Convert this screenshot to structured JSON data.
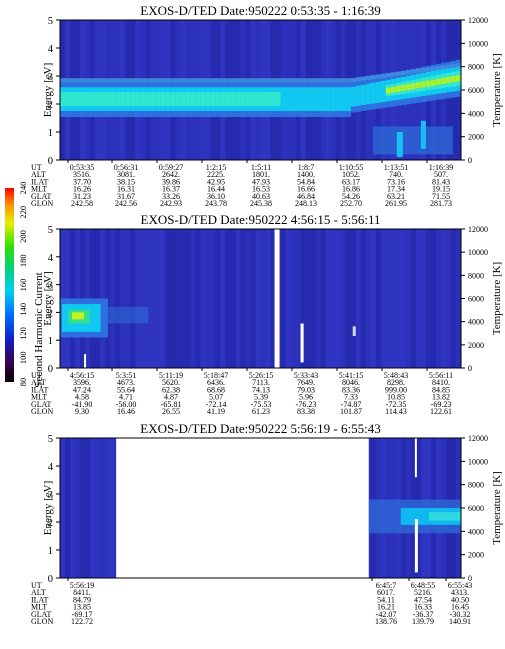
{
  "panels": [
    {
      "title": "EXOS-D/TED   Date:950222  0:53:35 - 1:16:39",
      "ylabel_left": "Energy [eV]",
      "ylabel_right": "Temperature [K]",
      "yticks_left": [
        "0",
        "1",
        "2",
        "3",
        "4",
        "5"
      ],
      "yticks_right": [
        "0",
        "2000",
        "4000",
        "6000",
        "8000",
        "10000",
        "12000"
      ],
      "ephemeris_labels": [
        "UT",
        "ALT",
        "ILAT",
        "MLT",
        "GLAT",
        "GLON"
      ],
      "ephemeris": [
        [
          "0:53:35",
          "3516.",
          "37.70",
          "16.26",
          "31.23",
          "242.58"
        ],
        [
          "0:56:31",
          "3081.",
          "38.15",
          "16.31",
          "31.67",
          "242.56"
        ],
        [
          "0:59:27",
          "2642.",
          "39.86",
          "16.37",
          "33.26",
          "242.93"
        ],
        [
          "1:2:15",
          "2225.",
          "42.95",
          "16.44",
          "36.10",
          "243.78"
        ],
        [
          "1:5:11",
          "1801.",
          "47.93",
          "16.53",
          "40.63",
          "245.38"
        ],
        [
          "1:8:7",
          "1400.",
          "54.84",
          "16.66",
          "46.84",
          "248.13"
        ],
        [
          "1:10:55",
          "1052.",
          "63.17",
          "16.86",
          "54.26",
          "252.70"
        ],
        [
          "1:13:51",
          "740.",
          "73.16",
          "17.34",
          "63.21",
          "261.95"
        ],
        [
          "1:16:39",
          "507.",
          "81.43",
          "19.15",
          "71.55",
          "281.73"
        ]
      ]
    },
    {
      "title": "EXOS-D/TED   Date:950222  4:56:15 - 5:56:11",
      "ylabel_left": "Energy [eV]",
      "ylabel_right": "Temperature [K]",
      "colorbar_label": "Second Harmonic Current",
      "colorbar_ticks": [
        "80",
        "100",
        "120",
        "140",
        "160",
        "180",
        "200",
        "220",
        "240"
      ],
      "yticks_left": [
        "0",
        "1",
        "2",
        "3",
        "4",
        "5"
      ],
      "yticks_right": [
        "0",
        "2000",
        "4000",
        "6000",
        "8000",
        "10000",
        "12000"
      ],
      "ephemeris_labels": [
        "UT",
        "ALT",
        "ILAT",
        "MLT",
        "GLAT",
        "GLON"
      ],
      "ephemeris": [
        [
          "4:56:15",
          "3596.",
          "47.24",
          "4.58",
          "-41.90",
          "9.30"
        ],
        [
          "5:3:51",
          "4673.",
          "55.64",
          "4.71",
          "-56.00",
          "16.46"
        ],
        [
          "5:11:19",
          "5620.",
          "62.38",
          "4.87",
          "-65.81",
          "26.55"
        ],
        [
          "5:18:47",
          "6436.",
          "68.68",
          "5.07",
          "-72.14",
          "41.19"
        ],
        [
          "5:26:15",
          "7113.",
          "74.13",
          "5.39",
          "-75.53",
          "61.23"
        ],
        [
          "5:33:43",
          "7649.",
          "79.03",
          "5.96",
          "-76.23",
          "83.38"
        ],
        [
          "5:41:15",
          "8046.",
          "83.36",
          "7.33",
          "-74.87",
          "101.87"
        ],
        [
          "5:48:43",
          "8298.",
          "999.00",
          "10.85",
          "-72.35",
          "114.43"
        ],
        [
          "5:56:11",
          "8410.",
          "84.85",
          "13.82",
          "-69.23",
          "122.61"
        ]
      ]
    },
    {
      "title": "EXOS-D/TED   Date:950222  5:56:19 - 6:55:43",
      "ylabel_left": "Energy [eV]",
      "ylabel_right": "Temperature [K]",
      "yticks_left": [
        "0",
        "1",
        "2",
        "3",
        "4",
        "5"
      ],
      "yticks_right": [
        "0",
        "2000",
        "4000",
        "6000",
        "8000",
        "10000",
        "12000"
      ],
      "ephemeris_labels": [
        "UT",
        "ALT",
        "ILAT",
        "MLT",
        "GLAT",
        "GLON"
      ],
      "ephemeris": [
        [
          "5:56:19",
          "8411.",
          "84.79",
          "13.85",
          "-69.17",
          "122.72"
        ],
        [
          "6:45:7",
          "6017.",
          "54.11",
          "16.21",
          "-42.07",
          "138.76"
        ],
        [
          "6:48:55",
          "5216.",
          "47.54",
          "16.33",
          "-36.37",
          "139.79"
        ],
        [
          "6:55:43",
          "4313.",
          "40.50",
          "16.45",
          "-30.32",
          "140.91"
        ]
      ]
    }
  ],
  "chart_data": [
    {
      "type": "heatmap",
      "title": "EXOS-D/TED   Date:950222  0:53:35 - 1:16:39",
      "ylabel": "Energy [eV]",
      "ylabel_right": "Temperature [K]",
      "ylim": [
        0,
        5
      ],
      "ylim_right": [
        0,
        12000
      ],
      "x": [
        "0:53:35",
        "0:56:31",
        "0:59:27",
        "1:2:15",
        "1:5:11",
        "1:8:7",
        "1:10:55",
        "1:13:51",
        "1:16:39"
      ],
      "features": [
        {
          "band": "peak",
          "energy_eV": [
            1.8,
            2.6
          ],
          "ut_range": [
            "0:53:35",
            "1:10:55"
          ],
          "level": "cyan/green"
        },
        {
          "band": "rising peak",
          "energy_eV": [
            2.0,
            3.3
          ],
          "ut_range": [
            "1:10:55",
            "1:16:39"
          ],
          "level": "green/yellow"
        },
        {
          "band": "background",
          "energy_eV": [
            0,
            5
          ],
          "level": "dark blue"
        }
      ]
    },
    {
      "type": "heatmap",
      "title": "EXOS-D/TED   Date:950222  4:56:15 - 5:56:11",
      "ylabel": "Energy [eV]",
      "ylabel_right": "Temperature [K]",
      "ylim": [
        0,
        5
      ],
      "ylim_right": [
        0,
        12000
      ],
      "x": [
        "4:56:15",
        "5:3:51",
        "5:11:19",
        "5:18:47",
        "5:26:15",
        "5:33:43",
        "5:41:15",
        "5:48:43",
        "5:56:11"
      ],
      "colorbar": {
        "label": "Second Harmonic Current",
        "range": [
          80,
          240
        ],
        "ticks": [
          80,
          100,
          120,
          140,
          160,
          180,
          200,
          220,
          240
        ]
      },
      "features": [
        {
          "band": "peak",
          "energy_eV": [
            1.3,
            2.4
          ],
          "ut_range": [
            "4:56:15",
            "5:3:51"
          ],
          "level": "cyan/green"
        },
        {
          "band": "data gap",
          "ut": "5:26:15"
        },
        {
          "band": "background",
          "energy_eV": [
            0,
            5
          ],
          "level": "dark blue"
        }
      ]
    },
    {
      "type": "heatmap",
      "title": "EXOS-D/TED   Date:950222  5:56:19 - 6:55:43",
      "ylabel": "Energy [eV]",
      "ylabel_right": "Temperature [K]",
      "ylim": [
        0,
        5
      ],
      "ylim_right": [
        0,
        12000
      ],
      "x": [
        "5:56:19",
        "6:45:7",
        "6:48:55",
        "6:55:43"
      ],
      "features": [
        {
          "band": "data gap",
          "ut_range": [
            "5:56:19",
            "6:45:7"
          ]
        },
        {
          "band": "peak",
          "energy_eV": [
            1.8,
            2.6
          ],
          "ut_range": [
            "6:48:55",
            "6:55:43"
          ],
          "level": "cyan"
        },
        {
          "band": "background",
          "energy_eV": [
            0,
            5
          ],
          "level": "dark blue"
        }
      ]
    }
  ]
}
